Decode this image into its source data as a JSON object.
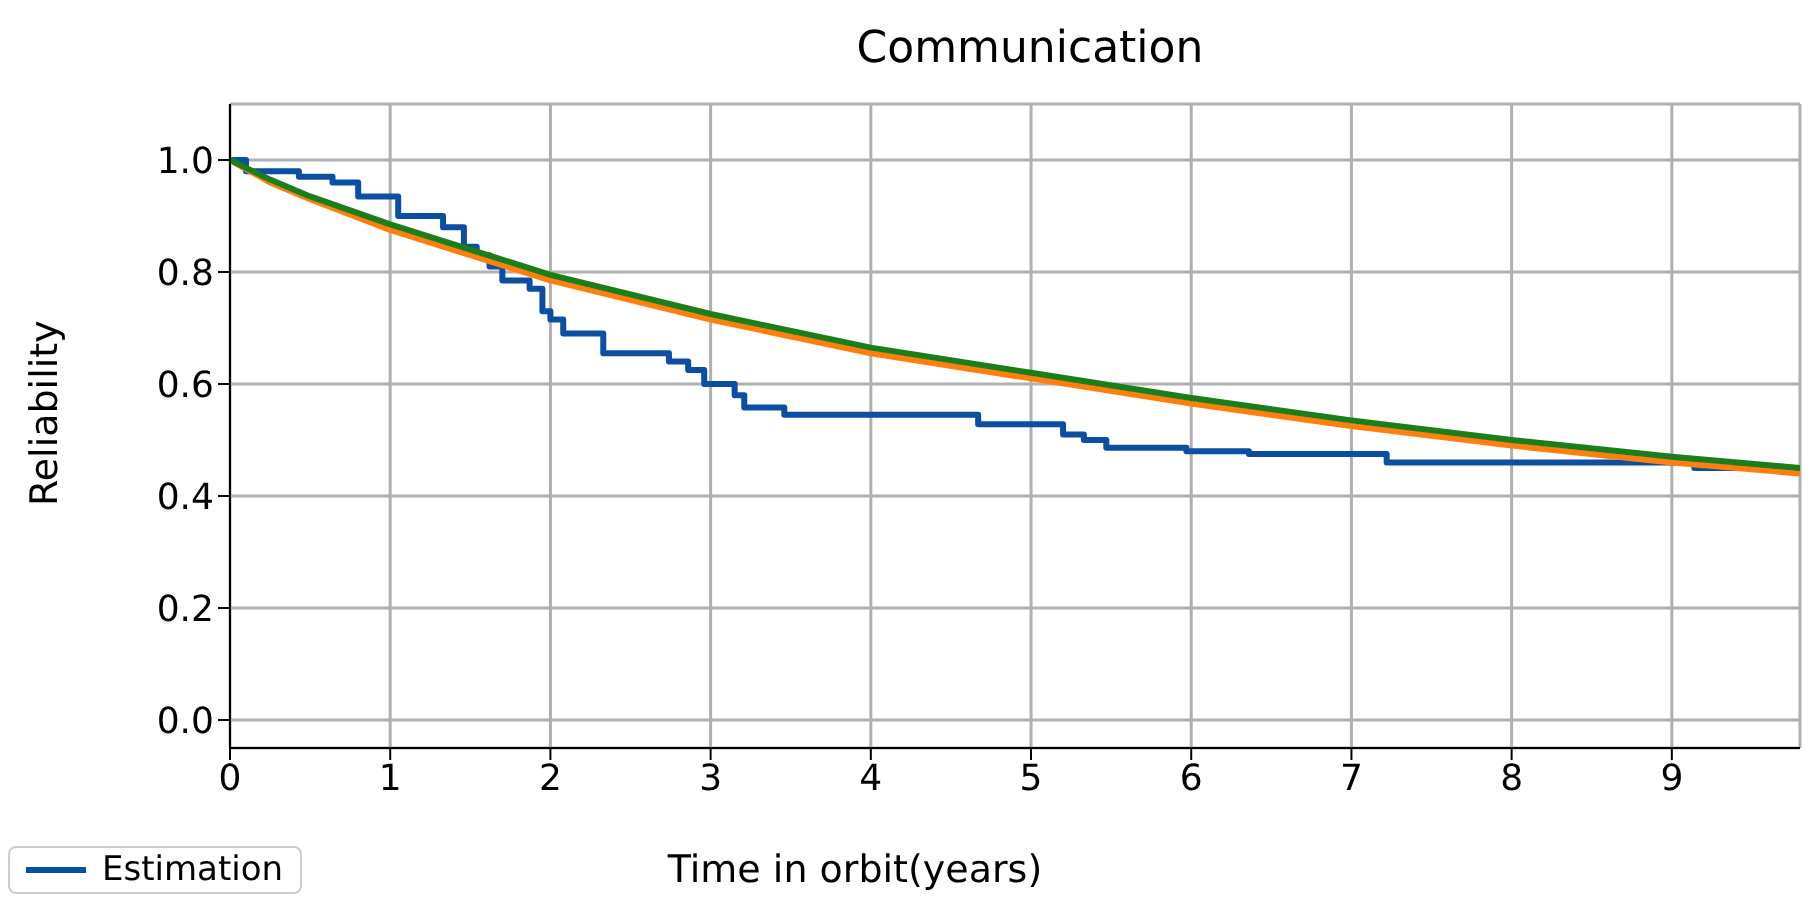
{
  "chart_data": {
    "type": "line",
    "title": "Communication",
    "xlabel": "Time in orbit(years)",
    "ylabel": "Reliability",
    "xlim": [
      0,
      9.8
    ],
    "xticks": [
      0,
      1,
      2,
      3,
      4,
      5,
      6,
      7,
      8,
      9
    ],
    "ylim": [
      -0.05,
      1.1
    ],
    "yticks": [
      {
        "value": 0,
        "label": "0.0"
      },
      0.2,
      0.4,
      0.6,
      0.8,
      {
        "value": 1,
        "label": "1.0"
      }
    ],
    "grid": true,
    "legend": "bottom left",
    "marker": "none",
    "line_style": "solid",
    "series": [
      {
        "name": "Estimation",
        "type": "step",
        "color": "#0b4ea2",
        "x": [
          0,
          0.1,
          0.43,
          0.64,
          0.8,
          1.05,
          1.33,
          1.46,
          1.54,
          1.62,
          1.7,
          1.87,
          1.95,
          2.0,
          2.08,
          2.33,
          2.74,
          2.86,
          2.96,
          3.15,
          3.21,
          3.46,
          4.67,
          5.2,
          5.33,
          5.47,
          5.97,
          6.36,
          7.22,
          9.14,
          9.8
        ],
        "values": [
          1.0,
          0.98,
          0.97,
          0.96,
          0.935,
          0.9,
          0.88,
          0.845,
          0.83,
          0.81,
          0.785,
          0.77,
          0.73,
          0.715,
          0.69,
          0.655,
          0.64,
          0.625,
          0.6,
          0.58,
          0.558,
          0.545,
          0.528,
          0.51,
          0.5,
          0.486,
          0.48,
          0.475,
          0.46,
          0.45,
          0.45
        ]
      },
      {
        "type": "line",
        "color": "#ff7f0e",
        "x": [
          0,
          0.25,
          0.5,
          1,
          1.5,
          2,
          3,
          4,
          5,
          6,
          7,
          8,
          9,
          9.8
        ],
        "values": [
          1.0,
          0.96,
          0.93,
          0.875,
          0.83,
          0.785,
          0.715,
          0.655,
          0.61,
          0.565,
          0.525,
          0.49,
          0.46,
          0.44
        ]
      },
      {
        "type": "line",
        "color": "#1a7f1a",
        "x": [
          0,
          0.25,
          0.5,
          1,
          1.5,
          2,
          3,
          4,
          5,
          6,
          7,
          8,
          9,
          9.8
        ],
        "values": [
          1.0,
          0.965,
          0.935,
          0.885,
          0.84,
          0.795,
          0.725,
          0.665,
          0.62,
          0.575,
          0.535,
          0.5,
          0.47,
          0.45
        ]
      }
    ]
  }
}
